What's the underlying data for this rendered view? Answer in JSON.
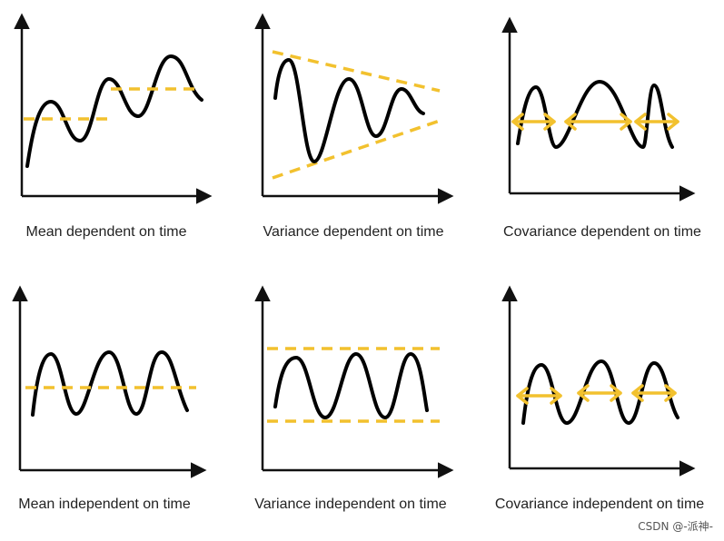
{
  "panels": [
    {
      "caption": "Mean dependent on time"
    },
    {
      "caption": "Variance dependent on time"
    },
    {
      "caption": "Covariance dependent on time"
    },
    {
      "caption": "Mean independent on time"
    },
    {
      "caption": "Variance independent on time"
    },
    {
      "caption": "Covariance independent on time"
    }
  ],
  "watermark": "CSDN @-派神-",
  "colors": {
    "axis": "#111111",
    "wave": "#000000",
    "guide": "#f2c12e"
  }
}
